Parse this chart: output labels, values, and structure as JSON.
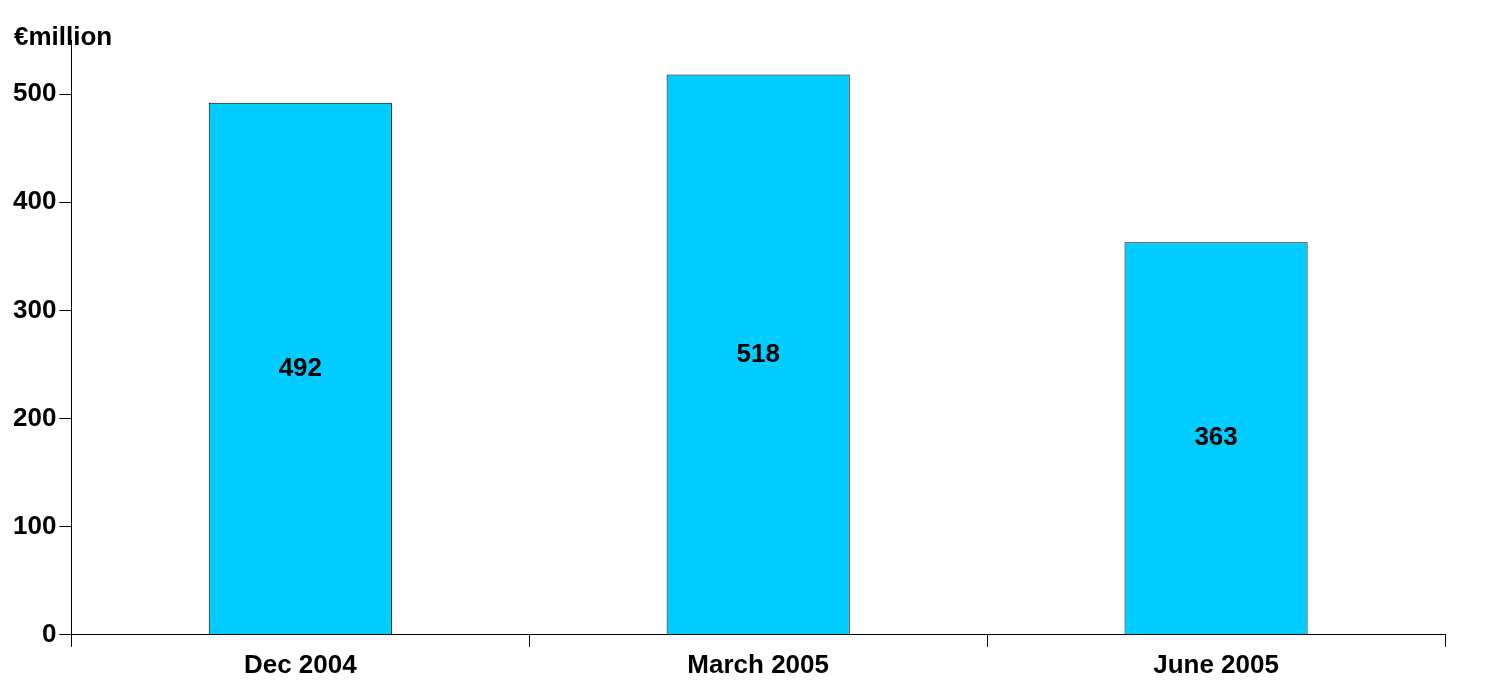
{
  "chart_data": {
    "type": "bar",
    "ylabel": "€million",
    "categories": [
      "Dec 2004",
      "March 2005",
      "June 2005"
    ],
    "values": [
      492,
      518,
      363
    ],
    "color": "#00ccff",
    "ylim": [
      0,
      550
    ],
    "yticks": [
      0,
      100,
      200,
      300,
      400,
      500
    ],
    "grid": false,
    "legend": false,
    "data_labels": true
  }
}
